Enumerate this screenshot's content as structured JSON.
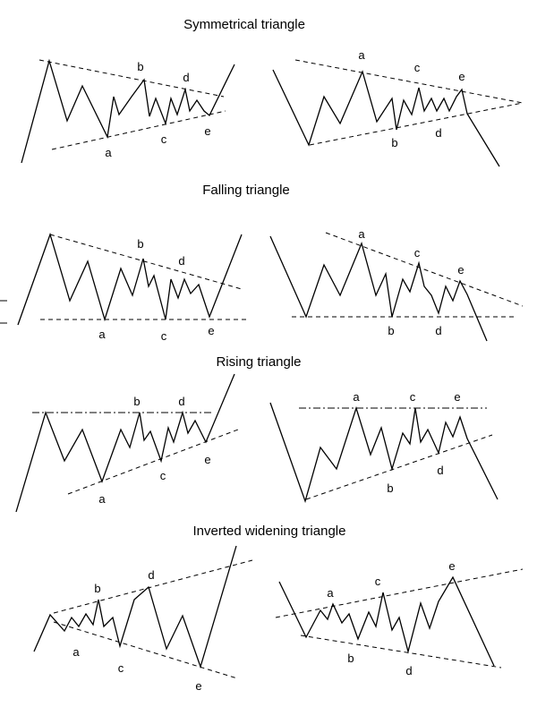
{
  "sections": [
    {
      "title": "Symmetrical triangle",
      "diagrams": [
        {
          "labels": [
            "a",
            "b",
            "c",
            "d",
            "e"
          ]
        },
        {
          "labels": [
            "a",
            "b",
            "c",
            "d",
            "e"
          ]
        }
      ]
    },
    {
      "title": "Falling triangle",
      "diagrams": [
        {
          "labels": [
            "a",
            "b",
            "c",
            "d",
            "e"
          ]
        },
        {
          "labels": [
            "a",
            "b",
            "c",
            "d",
            "e"
          ]
        }
      ]
    },
    {
      "title": "Rising triangle",
      "diagrams": [
        {
          "labels": [
            "a",
            "b",
            "c",
            "d",
            "e"
          ]
        },
        {
          "labels": [
            "a",
            "b",
            "c",
            "d",
            "e"
          ]
        }
      ]
    },
    {
      "title": "Inverted widening triangle",
      "diagrams": [
        {
          "labels": [
            "a",
            "b",
            "c",
            "d",
            "e"
          ]
        },
        {
          "labels": [
            "a",
            "b",
            "c",
            "d",
            "e"
          ]
        }
      ]
    }
  ],
  "colors": {
    "stroke": "#000000",
    "background": "#ffffff"
  }
}
